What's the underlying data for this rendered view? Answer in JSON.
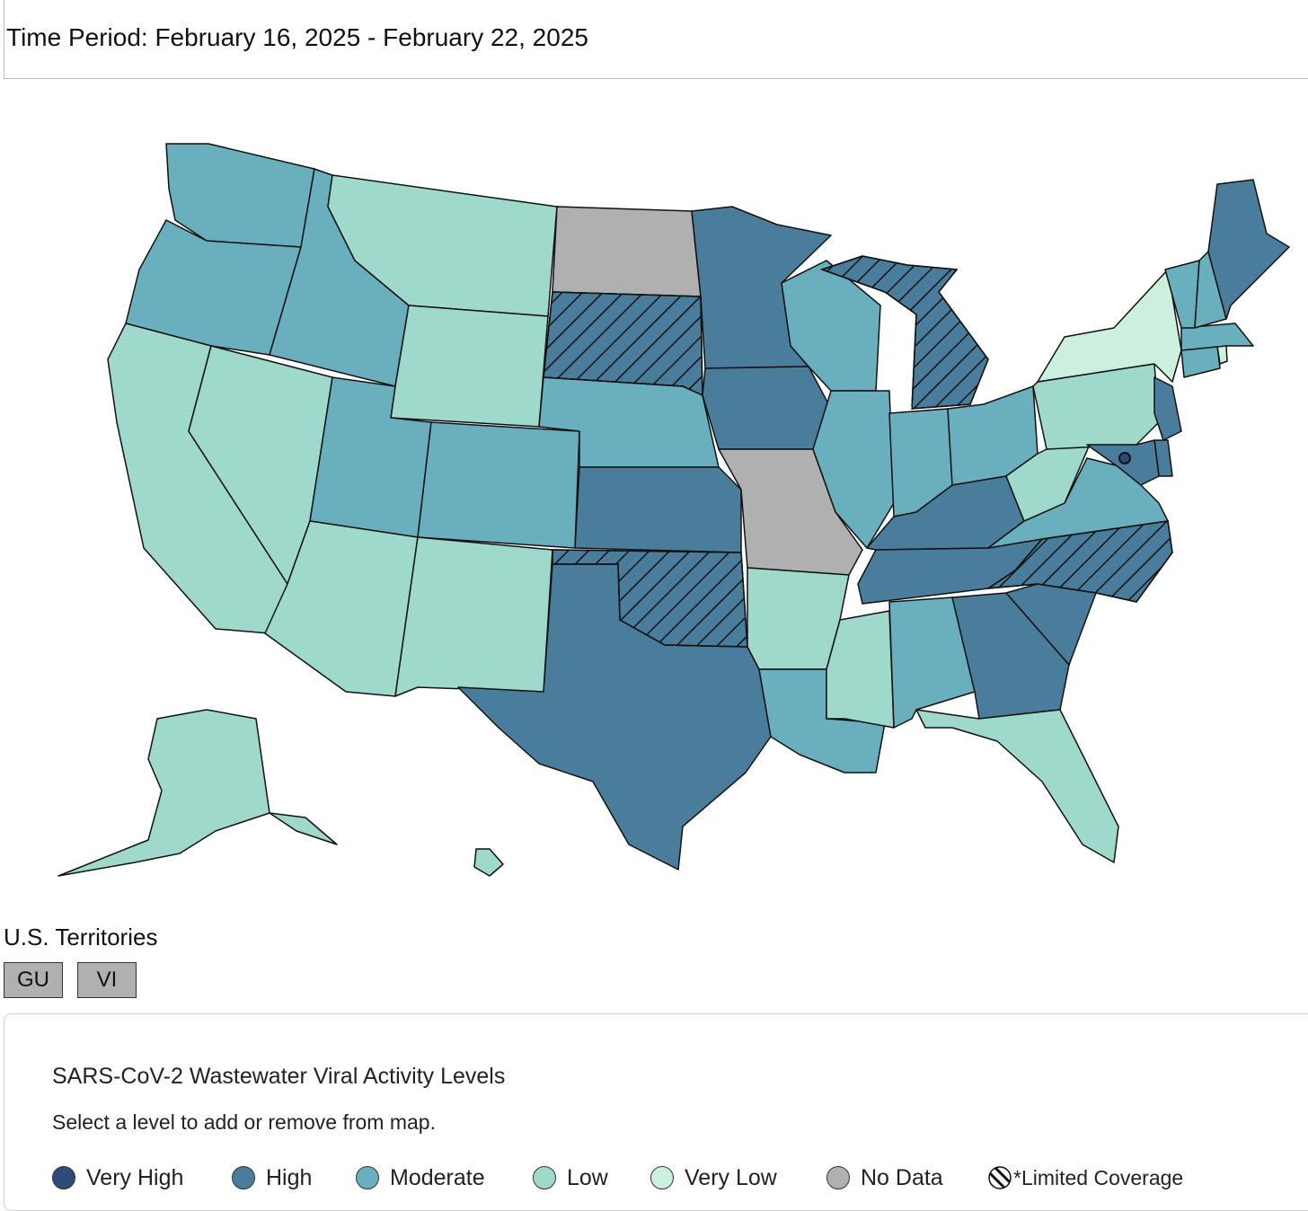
{
  "time_period": "Time Period: February 16, 2025 - February 22, 2025",
  "colors": {
    "very_high": "#2e4a78",
    "high": "#4a7d9c",
    "moderate": "#6aafbd",
    "low": "#9ed9cc",
    "very_low": "#ccf0dd",
    "no_data": "#b0b0b0"
  },
  "states": {
    "WA": "moderate",
    "OR": "moderate",
    "CA": "low",
    "NV": "low",
    "ID": "moderate",
    "MT": "low",
    "WY": "low",
    "UT": "moderate",
    "AZ": "low",
    "CO": "moderate",
    "NM": "low",
    "ND": "no_data",
    "SD": "high",
    "NE": "moderate",
    "KS": "high",
    "OK": "high",
    "TX": "high",
    "MN": "high",
    "IA": "high",
    "MO": "no_data",
    "AR": "low",
    "LA": "moderate",
    "WI": "moderate",
    "IL": "moderate",
    "MI": "high",
    "IN": "moderate",
    "OH": "moderate",
    "KY": "high",
    "TN": "high",
    "MS": "low",
    "AL": "moderate",
    "GA": "high",
    "FL": "low",
    "SC": "high",
    "NC": "high",
    "VA": "moderate",
    "WV": "low",
    "PA": "low",
    "NY": "very_low",
    "NJ": "high",
    "DE": "high",
    "MD": "high",
    "CT": "moderate",
    "RI": "very_low",
    "MA": "moderate",
    "VT": "moderate",
    "NH": "moderate",
    "ME": "high",
    "AK": "low",
    "HI": "low"
  },
  "limited_coverage": [
    "SD",
    "OK",
    "MI",
    "NC"
  ],
  "territories": {
    "title": "U.S. Territories",
    "buttons": [
      "GU",
      "VI"
    ]
  },
  "legend": {
    "title": "SARS-CoV-2 Wastewater Viral Activity Levels",
    "subtitle": "Select a level to add or remove from map.",
    "items": [
      {
        "key": "very_high",
        "label": "Very High"
      },
      {
        "key": "high",
        "label": "High"
      },
      {
        "key": "moderate",
        "label": "Moderate"
      },
      {
        "key": "low",
        "label": "Low"
      },
      {
        "key": "very_low",
        "label": "Very Low"
      },
      {
        "key": "no_data",
        "label": "No Data"
      }
    ],
    "limited_label": "*Limited Coverage"
  }
}
